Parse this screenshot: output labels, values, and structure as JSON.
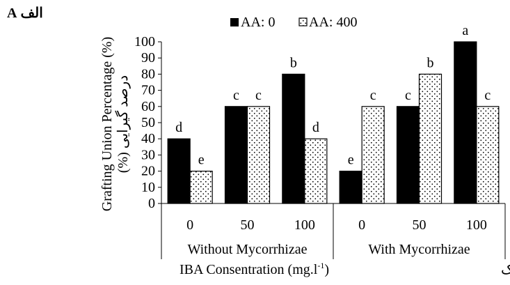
{
  "panel_label": "الف A",
  "chart_data": {
    "type": "bar",
    "ylabel": "Grafting Union Percentage (%)",
    "ylabel_fa": "درصد گیرایی (%)",
    "xlabel": "IBA Consentration (mg.l",
    "xlabel_sup": "-1",
    "xlabel_close": ")",
    "xlabel_fa": "غلظت اسید ایندول بوتریک",
    "ylim": [
      0,
      100
    ],
    "yticks": [
      "0",
      "10",
      "20",
      "30",
      "40",
      "50",
      "60",
      "70",
      "80",
      "90",
      "100"
    ],
    "groups": [
      {
        "label": "Without Mycorrhizae",
        "categories": [
          "0",
          "50",
          "100"
        ]
      },
      {
        "label": "With Mycorrhizae",
        "categories": [
          "0",
          "50",
          "100"
        ]
      }
    ],
    "series": [
      {
        "name": "AA: 0",
        "values": [
          40,
          60,
          80,
          20,
          60,
          100
        ],
        "letters": [
          "d",
          "c",
          "b",
          "e",
          "c",
          "a"
        ],
        "fill": "#000000"
      },
      {
        "name": "AA: 400",
        "values": [
          20,
          60,
          40,
          60,
          80,
          60
        ],
        "letters": [
          "e",
          "c",
          "d",
          "c",
          "b",
          "c"
        ],
        "fill": "dotted"
      }
    ],
    "legend_position": "top",
    "grid": false
  }
}
